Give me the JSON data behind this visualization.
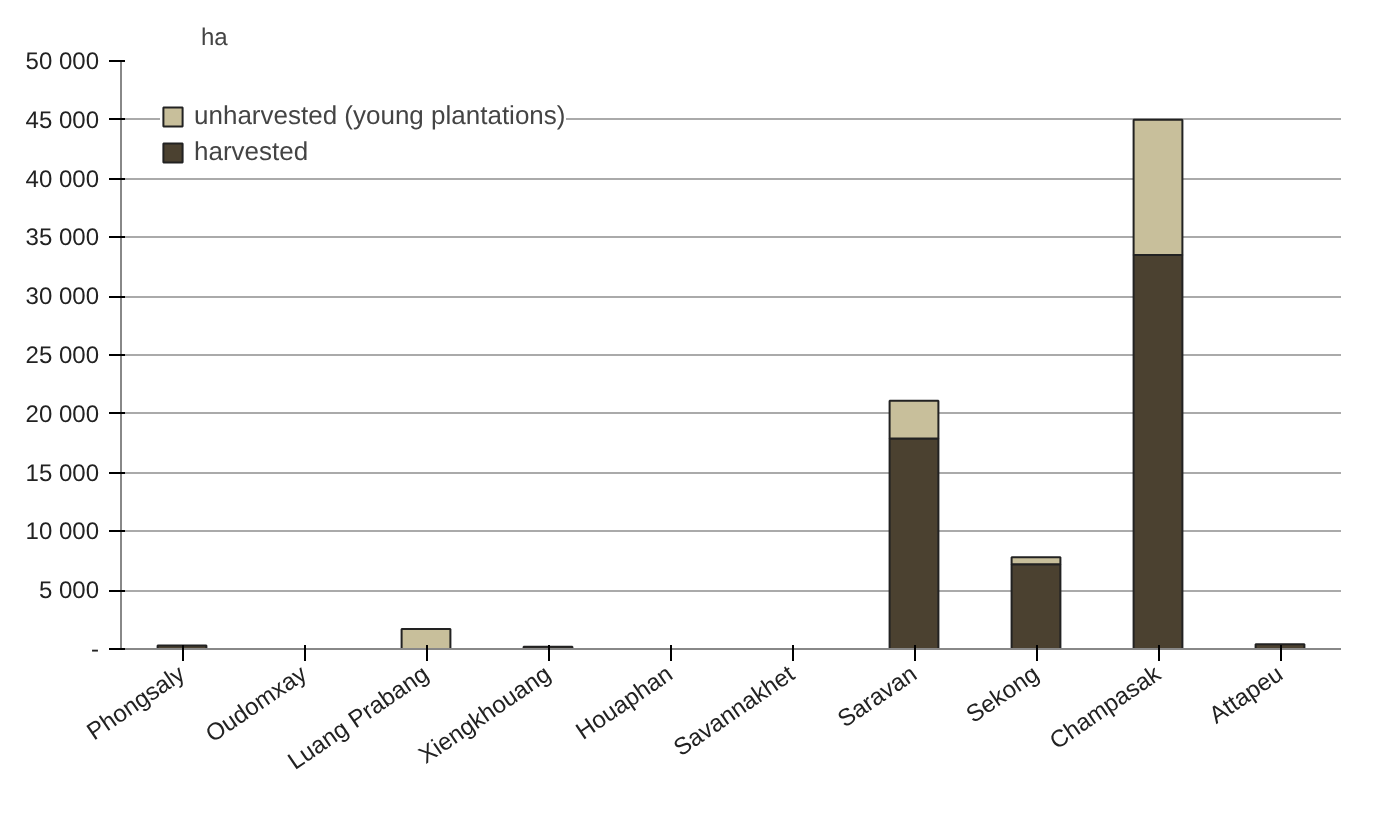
{
  "chart_data": {
    "type": "bar",
    "ylabel": "ha",
    "stacked": true,
    "categories": [
      "Phongsaly",
      "Oudomxay",
      "Luang Prabang",
      "Xiengkhouang",
      "Houaphan",
      "Savannakhet",
      "Saravan",
      "Sekong",
      "Champasak",
      "Attapeu"
    ],
    "series": [
      {
        "name": "harvested",
        "color": "#4b4130",
        "values": [
          300,
          null,
          null,
          200,
          null,
          null,
          17900,
          7200,
          33500,
          400
        ]
      },
      {
        "name": "unharvested (young plantations)",
        "color": "#c8bf9b",
        "values": [
          null,
          null,
          1700,
          null,
          null,
          null,
          3200,
          600,
          11500,
          null
        ]
      }
    ],
    "ylim": [
      0,
      50000
    ],
    "yticks": [
      {
        "value": 0,
        "label": "-"
      },
      {
        "value": 5000,
        "label": "5 000"
      },
      {
        "value": 10000,
        "label": "10 000"
      },
      {
        "value": 15000,
        "label": "15 000"
      },
      {
        "value": 20000,
        "label": "20 000"
      },
      {
        "value": 25000,
        "label": "25 000"
      },
      {
        "value": 30000,
        "label": "30 000"
      },
      {
        "value": 35000,
        "label": "35 000"
      },
      {
        "value": 40000,
        "label": "40 000"
      },
      {
        "value": 45000,
        "label": "45 000"
      },
      {
        "value": 50000,
        "label": "50 000"
      }
    ],
    "grid": "y",
    "legend": "top left"
  }
}
